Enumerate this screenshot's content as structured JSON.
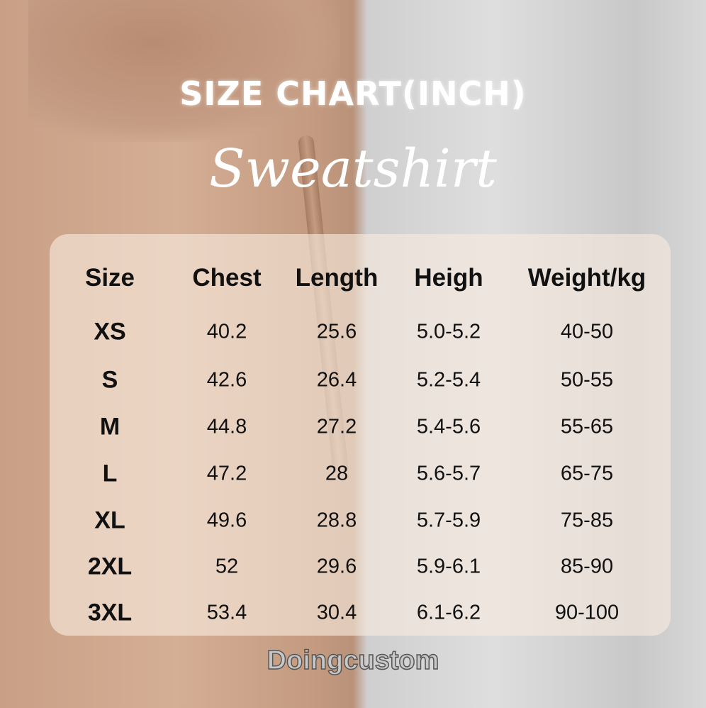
{
  "title": "SIZE CHART(INCH)",
  "subtitle": "Sweatshirt",
  "brand": "Doingcustom",
  "table": {
    "headers": [
      "Size",
      "Chest",
      "Length",
      "Heigh",
      "Weight/kg"
    ],
    "rows": [
      [
        "XS",
        "40.2",
        "25.6",
        "5.0-5.2",
        "40-50"
      ],
      [
        "S",
        "42.6",
        "26.4",
        "5.2-5.4",
        "50-55"
      ],
      [
        "M",
        "44.8",
        "27.2",
        "5.4-5.6",
        "55-65"
      ],
      [
        "L",
        "47.2",
        "28",
        "5.6-5.7",
        "65-75"
      ],
      [
        "XL",
        "49.6",
        "28.8",
        "5.7-5.9",
        "75-85"
      ],
      [
        "2XL",
        "52",
        "29.6",
        "5.9-6.1",
        "85-90"
      ],
      [
        "3XL",
        "53.4",
        "30.4",
        "6.1-6.2",
        "90-100"
      ]
    ]
  }
}
